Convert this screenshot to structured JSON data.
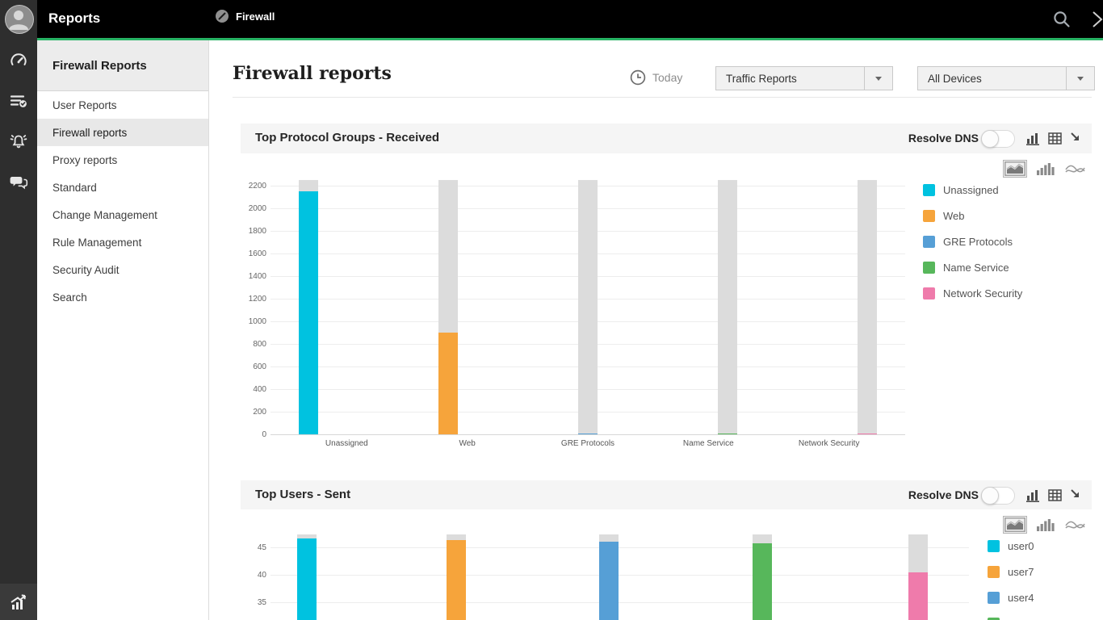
{
  "topbar": {
    "title": "Reports",
    "module_label": "Firewall"
  },
  "sidebar": {
    "title": "Firewall Reports",
    "items": [
      {
        "label": "User Reports",
        "active": false
      },
      {
        "label": "Firewall reports",
        "active": true
      },
      {
        "label": "Proxy reports",
        "active": false
      },
      {
        "label": "Standard",
        "active": false
      },
      {
        "label": "Change Management",
        "active": false
      },
      {
        "label": "Rule Management",
        "active": false
      },
      {
        "label": "Security Audit",
        "active": false
      },
      {
        "label": "Search",
        "active": false
      }
    ]
  },
  "page_header": {
    "title": "Firewall reports",
    "time_filter": "Today",
    "report_type_dropdown": "Traffic Reports",
    "device_dropdown": "All Devices"
  },
  "panels": [
    {
      "title": "Top Protocol Groups - Received",
      "resolve_dns_label": "Resolve DNS",
      "toggle_on": false
    },
    {
      "title": "Top Users - Sent",
      "resolve_dns_label": "Resolve DNS",
      "toggle_on": false
    }
  ],
  "colors": {
    "accent_green": "#27b364",
    "track_gray": "#dcdcdc",
    "cyan": "#00c2e0",
    "orange": "#f6a43b",
    "blue": "#569fd6",
    "green": "#57b75b",
    "pink": "#ef7bab"
  },
  "chart_data": [
    {
      "type": "bar",
      "title": "Top Protocol Groups - Received",
      "categories": [
        "Unassigned",
        "Web",
        "GRE Protocols",
        "Name Service",
        "Network Security"
      ],
      "values": [
        2150,
        900,
        10,
        4,
        4
      ],
      "track_max": 2250,
      "ylim": [
        0,
        2250
      ],
      "y_ticks": [
        0,
        200,
        400,
        600,
        800,
        1000,
        1200,
        1400,
        1600,
        1800,
        2000,
        2200
      ],
      "grid": true,
      "legend_position": "right",
      "bar_colors": [
        "#00c2e0",
        "#f6a43b",
        "#569fd6",
        "#57b75b",
        "#ef7bab"
      ],
      "track_color": "#dcdcdc",
      "legend": [
        {
          "label": "Unassigned",
          "color": "#00c2e0"
        },
        {
          "label": "Web",
          "color": "#f6a43b"
        },
        {
          "label": "GRE Protocols",
          "color": "#569fd6"
        },
        {
          "label": "Name Service",
          "color": "#57b75b"
        },
        {
          "label": "Network Security",
          "color": "#ef7bab"
        }
      ]
    },
    {
      "type": "bar",
      "title": "Top Users - Sent",
      "categories": [
        "user0",
        "user7",
        "user4",
        "",
        ""
      ],
      "values": [
        46.6,
        46.3,
        46.1,
        45.8,
        40.5
      ],
      "track_max": 47.3,
      "y_ticks": [
        45,
        40,
        35
      ],
      "grid": true,
      "legend_position": "right",
      "bar_colors": [
        "#00c2e0",
        "#f6a43b",
        "#569fd6",
        "#57b75b",
        "#ef7bab"
      ],
      "track_color": "#dcdcdc",
      "legend": [
        {
          "label": "user0",
          "color": "#00c2e0"
        },
        {
          "label": "user7",
          "color": "#f6a43b"
        },
        {
          "label": "user4",
          "color": "#569fd6"
        },
        {
          "label": "",
          "color": "#57b75b"
        }
      ]
    }
  ]
}
